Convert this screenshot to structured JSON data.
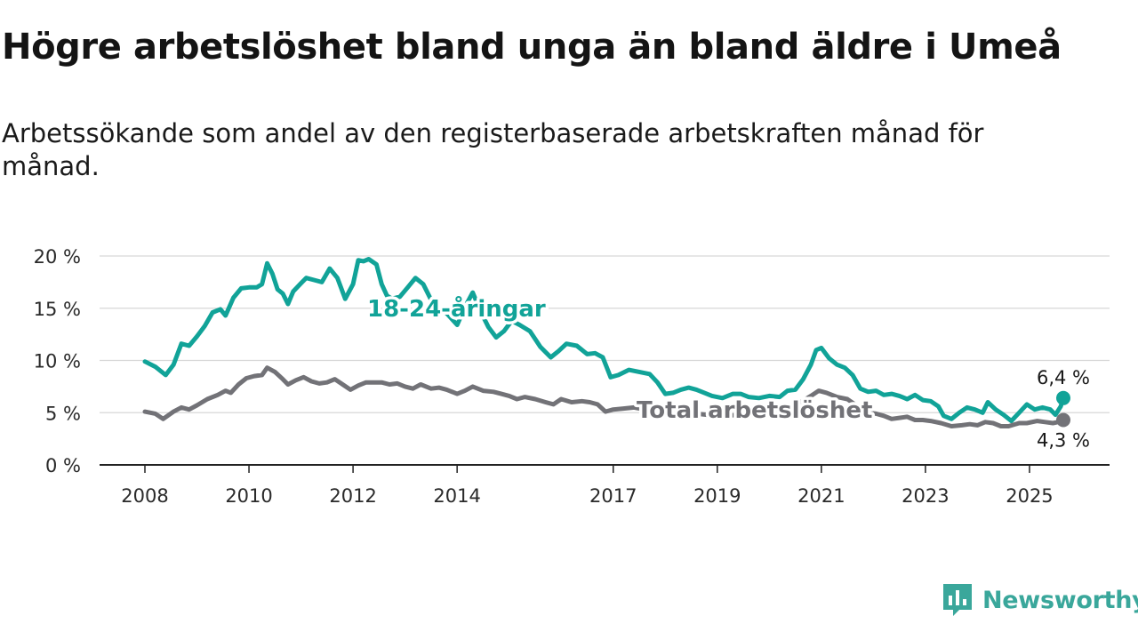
{
  "title": "Högre arbetslöshet bland unga än bland äldre i Umeå",
  "subtitle": "Arbetssökande som andel av den registerbaserade arbetskraften månad för månad.",
  "brand": {
    "name": "Newsworthy",
    "icon": "bar-chart-speech-icon",
    "color": "#3aa79b"
  },
  "chart_data": {
    "type": "line",
    "title": "Högre arbetslöshet bland unga än bland äldre i Umeå",
    "subtitle": "Arbetssökande som andel av den registerbaserade arbetskraften månad för månad.",
    "xlabel": "",
    "ylabel": "",
    "xlim": [
      2008.0,
      2025.65
    ],
    "ylim": [
      0,
      20
    ],
    "y_ticks": [
      0,
      5,
      10,
      15,
      20
    ],
    "y_tick_labels": [
      "0 %",
      "5 %",
      "10 %",
      "15 %",
      "20 %"
    ],
    "x_ticks": [
      2008,
      2010,
      2012,
      2014,
      2017,
      2019,
      2021,
      2023,
      2025
    ],
    "x_tick_labels": [
      "2008",
      "2010",
      "2012",
      "2014",
      "2017",
      "2019",
      "2021",
      "2023",
      "2025"
    ],
    "grid": true,
    "legend": "none",
    "series": [
      {
        "name": "18-24-åringar",
        "color": "#11a398",
        "end_label": "6,4 %",
        "points": [
          [
            2008.0,
            9.9
          ],
          [
            2008.2,
            9.4
          ],
          [
            2008.4,
            8.6
          ],
          [
            2008.55,
            9.6
          ],
          [
            2008.7,
            11.6
          ],
          [
            2008.85,
            11.4
          ],
          [
            2009.0,
            12.3
          ],
          [
            2009.15,
            13.3
          ],
          [
            2009.3,
            14.6
          ],
          [
            2009.45,
            14.9
          ],
          [
            2009.55,
            14.3
          ],
          [
            2009.7,
            16.0
          ],
          [
            2009.85,
            16.9
          ],
          [
            2010.0,
            17.0
          ],
          [
            2010.15,
            17.0
          ],
          [
            2010.25,
            17.3
          ],
          [
            2010.35,
            19.3
          ],
          [
            2010.45,
            18.3
          ],
          [
            2010.55,
            16.8
          ],
          [
            2010.65,
            16.4
          ],
          [
            2010.75,
            15.4
          ],
          [
            2010.85,
            16.6
          ],
          [
            2011.0,
            17.4
          ],
          [
            2011.1,
            17.9
          ],
          [
            2011.25,
            17.7
          ],
          [
            2011.4,
            17.5
          ],
          [
            2011.55,
            18.8
          ],
          [
            2011.7,
            17.9
          ],
          [
            2011.85,
            15.9
          ],
          [
            2012.0,
            17.3
          ],
          [
            2012.1,
            19.6
          ],
          [
            2012.2,
            19.5
          ],
          [
            2012.3,
            19.7
          ],
          [
            2012.45,
            19.2
          ],
          [
            2012.55,
            17.3
          ],
          [
            2012.65,
            16.2
          ],
          [
            2012.75,
            15.9
          ],
          [
            2012.9,
            16.1
          ],
          [
            2013.05,
            17.0
          ],
          [
            2013.2,
            17.9
          ],
          [
            2013.35,
            17.3
          ],
          [
            2013.5,
            15.8
          ],
          [
            2013.65,
            14.9
          ],
          [
            2013.8,
            14.5
          ],
          [
            2014.0,
            13.4
          ],
          [
            2014.15,
            15.1
          ],
          [
            2014.3,
            16.5
          ],
          [
            2014.45,
            14.7
          ],
          [
            2014.6,
            13.2
          ],
          [
            2014.75,
            12.2
          ],
          [
            2014.9,
            12.8
          ],
          [
            2015.05,
            13.8
          ],
          [
            2015.2,
            13.4
          ],
          [
            2015.4,
            12.8
          ],
          [
            2015.6,
            11.3
          ],
          [
            2015.8,
            10.3
          ],
          [
            2015.95,
            10.9
          ],
          [
            2016.1,
            11.6
          ],
          [
            2016.3,
            11.4
          ],
          [
            2016.5,
            10.6
          ],
          [
            2016.65,
            10.7
          ],
          [
            2016.8,
            10.3
          ],
          [
            2016.95,
            8.4
          ],
          [
            2017.1,
            8.6
          ],
          [
            2017.3,
            9.1
          ],
          [
            2017.5,
            8.9
          ],
          [
            2017.7,
            8.7
          ],
          [
            2017.85,
            7.9
          ],
          [
            2018.0,
            6.8
          ],
          [
            2018.15,
            6.9
          ],
          [
            2018.3,
            7.2
          ],
          [
            2018.45,
            7.4
          ],
          [
            2018.6,
            7.2
          ],
          [
            2018.75,
            6.9
          ],
          [
            2018.9,
            6.6
          ],
          [
            2019.1,
            6.4
          ],
          [
            2019.3,
            6.8
          ],
          [
            2019.45,
            6.8
          ],
          [
            2019.6,
            6.5
          ],
          [
            2019.8,
            6.4
          ],
          [
            2020.0,
            6.6
          ],
          [
            2020.2,
            6.5
          ],
          [
            2020.35,
            7.1
          ],
          [
            2020.5,
            7.2
          ],
          [
            2020.65,
            8.2
          ],
          [
            2020.8,
            9.6
          ],
          [
            2020.9,
            11.0
          ],
          [
            2021.0,
            11.2
          ],
          [
            2021.15,
            10.2
          ],
          [
            2021.3,
            9.6
          ],
          [
            2021.45,
            9.3
          ],
          [
            2021.6,
            8.6
          ],
          [
            2021.75,
            7.3
          ],
          [
            2021.9,
            7.0
          ],
          [
            2022.05,
            7.1
          ],
          [
            2022.2,
            6.7
          ],
          [
            2022.35,
            6.8
          ],
          [
            2022.5,
            6.6
          ],
          [
            2022.65,
            6.3
          ],
          [
            2022.8,
            6.7
          ],
          [
            2022.95,
            6.2
          ],
          [
            2023.1,
            6.1
          ],
          [
            2023.25,
            5.6
          ],
          [
            2023.35,
            4.7
          ],
          [
            2023.5,
            4.4
          ],
          [
            2023.65,
            5.0
          ],
          [
            2023.8,
            5.5
          ],
          [
            2023.95,
            5.3
          ],
          [
            2024.1,
            5.0
          ],
          [
            2024.2,
            6.0
          ],
          [
            2024.35,
            5.3
          ],
          [
            2024.5,
            4.8
          ],
          [
            2024.65,
            4.2
          ],
          [
            2024.8,
            5.0
          ],
          [
            2024.95,
            5.8
          ],
          [
            2025.1,
            5.3
          ],
          [
            2025.25,
            5.5
          ],
          [
            2025.4,
            5.3
          ],
          [
            2025.5,
            4.8
          ],
          [
            2025.6,
            5.6
          ],
          [
            2025.65,
            6.4
          ]
        ]
      },
      {
        "name": "Total arbetslöshet",
        "color": "#727277",
        "end_label": "4,3 %",
        "points": [
          [
            2008.0,
            5.1
          ],
          [
            2008.2,
            4.9
          ],
          [
            2008.35,
            4.4
          ],
          [
            2008.55,
            5.1
          ],
          [
            2008.7,
            5.5
          ],
          [
            2008.85,
            5.3
          ],
          [
            2009.0,
            5.7
          ],
          [
            2009.2,
            6.3
          ],
          [
            2009.4,
            6.7
          ],
          [
            2009.55,
            7.1
          ],
          [
            2009.65,
            6.9
          ],
          [
            2009.8,
            7.7
          ],
          [
            2009.95,
            8.3
          ],
          [
            2010.1,
            8.5
          ],
          [
            2010.25,
            8.6
          ],
          [
            2010.35,
            9.3
          ],
          [
            2010.5,
            8.9
          ],
          [
            2010.65,
            8.2
          ],
          [
            2010.75,
            7.7
          ],
          [
            2010.9,
            8.1
          ],
          [
            2011.05,
            8.4
          ],
          [
            2011.2,
            8.0
          ],
          [
            2011.35,
            7.8
          ],
          [
            2011.5,
            7.9
          ],
          [
            2011.65,
            8.2
          ],
          [
            2011.8,
            7.7
          ],
          [
            2011.95,
            7.2
          ],
          [
            2012.1,
            7.6
          ],
          [
            2012.25,
            7.9
          ],
          [
            2012.4,
            7.9
          ],
          [
            2012.55,
            7.9
          ],
          [
            2012.7,
            7.7
          ],
          [
            2012.85,
            7.8
          ],
          [
            2013.0,
            7.5
          ],
          [
            2013.15,
            7.3
          ],
          [
            2013.3,
            7.7
          ],
          [
            2013.5,
            7.3
          ],
          [
            2013.65,
            7.4
          ],
          [
            2013.8,
            7.2
          ],
          [
            2014.0,
            6.8
          ],
          [
            2014.15,
            7.1
          ],
          [
            2014.3,
            7.5
          ],
          [
            2014.5,
            7.1
          ],
          [
            2014.7,
            7.0
          ],
          [
            2014.85,
            6.8
          ],
          [
            2015.0,
            6.6
          ],
          [
            2015.15,
            6.3
          ],
          [
            2015.3,
            6.5
          ],
          [
            2015.5,
            6.3
          ],
          [
            2015.7,
            6.0
          ],
          [
            2015.85,
            5.8
          ],
          [
            2016.0,
            6.3
          ],
          [
            2016.2,
            6.0
          ],
          [
            2016.4,
            6.1
          ],
          [
            2016.55,
            6.0
          ],
          [
            2016.7,
            5.8
          ],
          [
            2016.85,
            5.1
          ],
          [
            2017.0,
            5.3
          ],
          [
            2017.2,
            5.4
          ],
          [
            2017.4,
            5.5
          ],
          [
            2017.6,
            5.3
          ],
          [
            2017.8,
            5.1
          ],
          [
            2018.0,
            4.9
          ],
          [
            2018.2,
            5.0
          ],
          [
            2018.4,
            5.0
          ],
          [
            2018.6,
            4.9
          ],
          [
            2018.8,
            4.8
          ],
          [
            2019.0,
            4.9
          ],
          [
            2019.2,
            4.7
          ],
          [
            2019.4,
            4.8
          ],
          [
            2019.6,
            4.8
          ],
          [
            2019.8,
            4.6
          ],
          [
            2020.0,
            4.8
          ],
          [
            2020.2,
            5.3
          ],
          [
            2020.4,
            5.7
          ],
          [
            2020.6,
            6.0
          ],
          [
            2020.8,
            6.6
          ],
          [
            2020.95,
            7.1
          ],
          [
            2021.1,
            6.9
          ],
          [
            2021.3,
            6.5
          ],
          [
            2021.5,
            6.3
          ],
          [
            2021.7,
            5.6
          ],
          [
            2021.9,
            5.0
          ],
          [
            2022.05,
            4.9
          ],
          [
            2022.2,
            4.7
          ],
          [
            2022.35,
            4.4
          ],
          [
            2022.5,
            4.5
          ],
          [
            2022.65,
            4.6
          ],
          [
            2022.8,
            4.3
          ],
          [
            2022.95,
            4.3
          ],
          [
            2023.1,
            4.2
          ],
          [
            2023.3,
            4.0
          ],
          [
            2023.5,
            3.7
          ],
          [
            2023.7,
            3.8
          ],
          [
            2023.85,
            3.9
          ],
          [
            2024.0,
            3.8
          ],
          [
            2024.15,
            4.1
          ],
          [
            2024.3,
            4.0
          ],
          [
            2024.45,
            3.7
          ],
          [
            2024.6,
            3.7
          ],
          [
            2024.8,
            4.0
          ],
          [
            2024.95,
            4.0
          ],
          [
            2025.15,
            4.2
          ],
          [
            2025.3,
            4.1
          ],
          [
            2025.45,
            4.0
          ],
          [
            2025.55,
            4.1
          ],
          [
            2025.65,
            4.3
          ]
        ]
      }
    ]
  }
}
